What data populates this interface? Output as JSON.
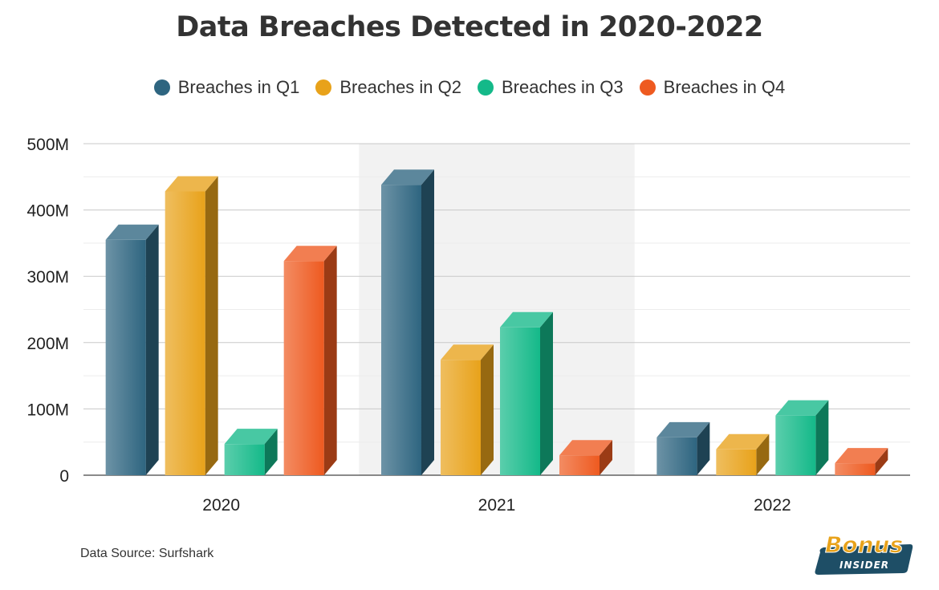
{
  "title": "Data Breaches Detected in 2020-2022",
  "source": "Data Source: Surfshark",
  "logo": {
    "text_top": "Bonus",
    "text_bottom": "INSIDER",
    "color_orange": "#e8a21a",
    "color_navy": "#1e4e66"
  },
  "chart_data": {
    "type": "bar",
    "title": "Data Breaches Detected in 2020-2022",
    "categories": [
      "2020",
      "2021",
      "2022"
    ],
    "series": [
      {
        "name": "Breaches in Q1",
        "color": "#2e6580",
        "values": [
          355,
          438,
          57
        ]
      },
      {
        "name": "Breaches in Q2",
        "color": "#e8a21a",
        "values": [
          428,
          174,
          39
        ]
      },
      {
        "name": "Breaches in Q3",
        "color": "#14b989",
        "values": [
          47,
          223,
          90
        ]
      },
      {
        "name": "Breaches in Q4",
        "color": "#ee5a20",
        "values": [
          323,
          30,
          18
        ]
      }
    ],
    "ylim": [
      0,
      500
    ],
    "yticks": [
      {
        "value": 0,
        "label": "0"
      },
      {
        "value": 100,
        "label": "100M"
      },
      {
        "value": 200,
        "label": "200M"
      },
      {
        "value": 300,
        "label": "300M"
      },
      {
        "value": 400,
        "label": "400M"
      },
      {
        "value": 500,
        "label": "500M"
      }
    ],
    "unit": "M",
    "grid": true,
    "legend_position": "top",
    "highlighted_category": "2021"
  }
}
